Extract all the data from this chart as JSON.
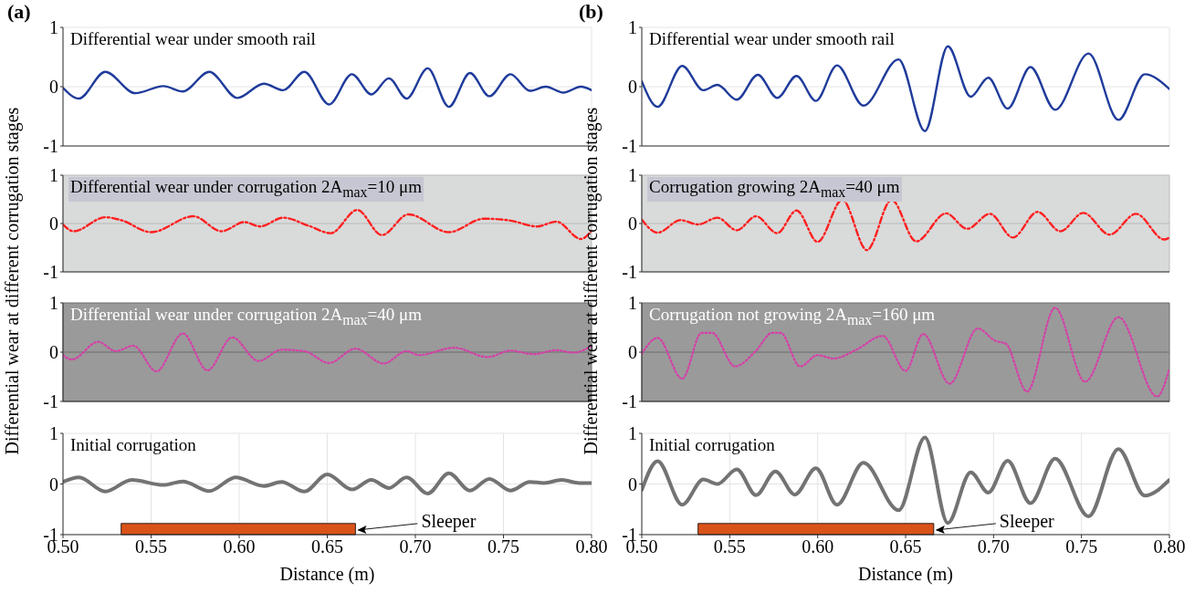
{
  "chart_data": [
    {
      "type": "line",
      "title": "Differential wear under smooth rail",
      "ylabel": "Differential wear at different corrugation stages",
      "annotations": [
        "(a)"
      ],
      "xlim": [
        0.5,
        0.8
      ],
      "xticks": [
        0.5,
        0.55,
        0.6,
        0.65,
        0.7,
        0.75,
        0.8
      ],
      "ylim": [
        -1,
        1
      ],
      "yticks": [
        -1,
        0,
        1
      ],
      "grid": true,
      "tick_labels": "y",
      "line_style": "solid",
      "series": [
        {
          "color": "#1f3b9b",
          "x": [
            0.5,
            0.509,
            0.524,
            0.541,
            0.557,
            0.568,
            0.583,
            0.599,
            0.614,
            0.625,
            0.637,
            0.651,
            0.664,
            0.675,
            0.685,
            0.695,
            0.707,
            0.719,
            0.731,
            0.742,
            0.754,
            0.765,
            0.774,
            0.784,
            0.794,
            0.8
          ],
          "values": [
            -0.02,
            -0.2,
            0.25,
            -0.11,
            0.01,
            -0.08,
            0.25,
            -0.19,
            0.05,
            -0.06,
            0.25,
            -0.3,
            0.21,
            -0.13,
            0.14,
            -0.2,
            0.31,
            -0.34,
            0.23,
            -0.16,
            0.21,
            -0.07,
            0.0,
            -0.1,
            0.0,
            -0.06
          ]
        }
      ]
    },
    {
      "type": "line",
      "title": "Differential wear under corrugation 2A$_{max}$=10 μm",
      "xlim": [
        0.5,
        0.8
      ],
      "xticks": [
        0.5,
        0.55,
        0.6,
        0.65,
        0.7,
        0.75,
        0.8
      ],
      "ylim": [
        -1,
        1
      ],
      "yticks": [
        -1,
        0,
        1
      ],
      "grid": true,
      "tick_labels": "y",
      "line_style": "dashed",
      "series": [
        {
          "color": "#ff1f1f",
          "x": [
            0.5,
            0.506,
            0.524,
            0.533,
            0.55,
            0.574,
            0.59,
            0.603,
            0.612,
            0.625,
            0.639,
            0.652,
            0.667,
            0.681,
            0.696,
            0.719,
            0.739,
            0.754,
            0.769,
            0.78,
            0.794,
            0.8
          ],
          "values": [
            -0.02,
            -0.16,
            0.13,
            0.07,
            -0.18,
            0.15,
            -0.16,
            0.03,
            -0.06,
            0.12,
            -0.04,
            -0.2,
            0.28,
            -0.24,
            0.19,
            -0.18,
            0.1,
            0.06,
            -0.06,
            0.04,
            -0.32,
            -0.15
          ]
        }
      ]
    },
    {
      "type": "line",
      "title": "Differential wear under corrugation 2A$_{max}$=40 μm",
      "xlim": [
        0.5,
        0.8
      ],
      "xticks": [
        0.5,
        0.55,
        0.6,
        0.65,
        0.7,
        0.75,
        0.8
      ],
      "ylim": [
        -1,
        1
      ],
      "yticks": [
        -1,
        0,
        1
      ],
      "grid": true,
      "tick_labels": "y",
      "line_style": "dotted",
      "series": [
        {
          "color": "#d63fa8",
          "x": [
            0.5,
            0.505,
            0.52,
            0.53,
            0.54,
            0.553,
            0.568,
            0.582,
            0.596,
            0.611,
            0.624,
            0.637,
            0.651,
            0.666,
            0.682,
            0.695,
            0.702,
            0.722,
            0.741,
            0.754,
            0.767,
            0.78,
            0.79,
            0.8
          ],
          "values": [
            -0.06,
            -0.15,
            0.21,
            0.02,
            0.13,
            -0.39,
            0.38,
            -0.37,
            0.3,
            -0.18,
            0.05,
            0.02,
            -0.22,
            0.07,
            -0.23,
            0.02,
            -0.06,
            0.09,
            -0.1,
            0.03,
            -0.04,
            0.04,
            -0.01,
            0.13
          ]
        }
      ]
    },
    {
      "type": "line",
      "title": "Initial corrugation",
      "xlabel": "Distance (m)",
      "xlim": [
        0.5,
        0.8
      ],
      "xticks": [
        {
          "value": 0.5,
          "label": "0.50"
        },
        0.55,
        {
          "value": 0.6,
          "label": "0.60"
        },
        0.65,
        {
          "value": 0.7,
          "label": "0.70"
        },
        0.75,
        {
          "value": 0.8,
          "label": "0.80"
        }
      ],
      "ylim": [
        -1,
        1
      ],
      "yticks": [
        -1,
        0,
        1
      ],
      "grid": true,
      "line_style": "solid",
      "bands": [
        {
          "axis": "x",
          "from": 0.533,
          "to": 0.666,
          "label": "Sleeper",
          "color": "#d95319"
        }
      ],
      "series": [
        {
          "color": "#737373",
          "x": [
            0.5,
            0.509,
            0.524,
            0.539,
            0.557,
            0.568,
            0.583,
            0.598,
            0.614,
            0.624,
            0.637,
            0.65,
            0.664,
            0.675,
            0.685,
            0.695,
            0.707,
            0.719,
            0.731,
            0.742,
            0.754,
            0.765,
            0.773,
            0.783,
            0.793,
            0.8
          ],
          "values": [
            0.04,
            0.13,
            -0.15,
            0.08,
            -0.02,
            0.05,
            -0.14,
            0.13,
            -0.04,
            0.04,
            -0.15,
            0.19,
            -0.11,
            0.08,
            -0.08,
            0.13,
            -0.19,
            0.21,
            -0.13,
            0.1,
            -0.13,
            0.04,
            0.02,
            0.08,
            0.02,
            0.02
          ]
        }
      ]
    },
    {
      "type": "line",
      "title": "Differential wear under smooth rail",
      "ylabel": "Differential wear at different corrugation stages",
      "annotations": [
        "(b)"
      ],
      "xlim": [
        0.5,
        0.8
      ],
      "xticks": [
        0.5,
        0.55,
        0.6,
        0.65,
        0.7,
        0.75,
        0.8
      ],
      "ylim": [
        -1,
        1
      ],
      "yticks": [
        -1,
        0,
        1
      ],
      "grid": true,
      "tick_labels": "y",
      "line_style": "solid",
      "series": [
        {
          "color": "#1f3b9b",
          "x": [
            0.5,
            0.509,
            0.523,
            0.535,
            0.543,
            0.554,
            0.566,
            0.577,
            0.588,
            0.599,
            0.611,
            0.626,
            0.646,
            0.661,
            0.674,
            0.687,
            0.697,
            0.708,
            0.721,
            0.735,
            0.754,
            0.771,
            0.786,
            0.8
          ],
          "values": [
            0.09,
            -0.34,
            0.35,
            -0.06,
            0.03,
            -0.22,
            0.2,
            -0.19,
            0.18,
            -0.24,
            0.36,
            -0.32,
            0.46,
            -0.75,
            0.68,
            -0.17,
            0.15,
            -0.37,
            0.33,
            -0.39,
            0.56,
            -0.56,
            0.21,
            -0.04
          ]
        }
      ]
    },
    {
      "type": "line",
      "title": "Corrugation growing 2A$_{max}$=40 μm",
      "xlim": [
        0.5,
        0.8
      ],
      "xticks": [
        0.5,
        0.55,
        0.6,
        0.65,
        0.7,
        0.75,
        0.8
      ],
      "ylim": [
        -1,
        1
      ],
      "yticks": [
        -1,
        0,
        1
      ],
      "grid": true,
      "tick_labels": "y",
      "line_style": "dashed",
      "series": [
        {
          "color": "#ff1f1f",
          "x": [
            0.5,
            0.509,
            0.522,
            0.532,
            0.543,
            0.554,
            0.565,
            0.577,
            0.588,
            0.6,
            0.614,
            0.628,
            0.642,
            0.656,
            0.673,
            0.685,
            0.698,
            0.711,
            0.725,
            0.738,
            0.751,
            0.766,
            0.781,
            0.797,
            0.8
          ],
          "values": [
            0.08,
            -0.19,
            0.07,
            -0.02,
            0.12,
            -0.14,
            0.15,
            -0.2,
            0.27,
            -0.38,
            0.49,
            -0.55,
            0.49,
            -0.37,
            0.21,
            -0.11,
            0.2,
            -0.29,
            0.24,
            -0.16,
            0.22,
            -0.23,
            0.2,
            -0.33,
            -0.29
          ]
        }
      ]
    },
    {
      "type": "line",
      "title": "Corrugation not growing 2A$_{max}$=160 μm",
      "xlim": [
        0.5,
        0.8
      ],
      "xticks": [
        0.5,
        0.55,
        0.6,
        0.65,
        0.7,
        0.75,
        0.8
      ],
      "ylim": [
        -1,
        1
      ],
      "yticks": [
        -1,
        0,
        1
      ],
      "grid": true,
      "tick_labels": "y",
      "line_style": "dotted",
      "series": [
        {
          "color": "#d63fa8",
          "x": [
            0.5,
            0.509,
            0.523,
            0.534,
            0.54,
            0.553,
            0.565,
            0.574,
            0.579,
            0.59,
            0.6,
            0.609,
            0.622,
            0.637,
            0.65,
            0.66,
            0.675,
            0.691,
            0.701,
            0.707,
            0.719,
            0.735,
            0.752,
            0.771,
            0.793,
            0.8
          ],
          "values": [
            -0.03,
            0.29,
            -0.54,
            0.39,
            0.39,
            -0.29,
            0.03,
            0.39,
            0.39,
            -0.29,
            -0.06,
            -0.13,
            0.05,
            0.33,
            -0.38,
            0.37,
            -0.64,
            0.48,
            0.23,
            0.17,
            -0.8,
            0.9,
            -0.6,
            0.71,
            -0.9,
            -0.33
          ]
        }
      ]
    },
    {
      "type": "line",
      "title": "Initial corrugation",
      "xlabel": "Distance (m)",
      "xlim": [
        0.5,
        0.8
      ],
      "xticks": [
        {
          "value": 0.5,
          "label": "0.50"
        },
        0.55,
        {
          "value": 0.6,
          "label": "0.60"
        },
        0.65,
        {
          "value": 0.7,
          "label": "0.70"
        },
        0.75,
        {
          "value": 0.8,
          "label": "0.80"
        }
      ],
      "ylim": [
        -1,
        1
      ],
      "yticks": [
        -1,
        0,
        1
      ],
      "grid": true,
      "line_style": "solid",
      "bands": [
        {
          "axis": "x",
          "from": 0.532,
          "to": 0.666,
          "label": "Sleeper",
          "color": "#d95319"
        }
      ],
      "series": [
        {
          "color": "#737373",
          "x": [
            0.5,
            0.509,
            0.523,
            0.535,
            0.543,
            0.554,
            0.565,
            0.576,
            0.587,
            0.599,
            0.611,
            0.626,
            0.646,
            0.661,
            0.674,
            0.687,
            0.697,
            0.708,
            0.721,
            0.735,
            0.754,
            0.771,
            0.786,
            0.8
          ],
          "values": [
            -0.12,
            0.45,
            -0.41,
            0.09,
            0.0,
            0.29,
            -0.22,
            0.25,
            -0.21,
            0.31,
            -0.41,
            0.42,
            -0.52,
            0.92,
            -0.77,
            0.23,
            -0.17,
            0.46,
            -0.38,
            0.5,
            -0.64,
            0.69,
            -0.23,
            0.08
          ]
        }
      ]
    }
  ]
}
